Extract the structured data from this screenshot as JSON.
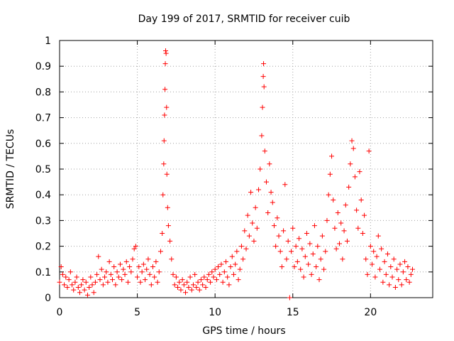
{
  "chart_data": {
    "type": "scatter",
    "title": "Day 199 of 2017, SRMTID for receiver cuib",
    "xlabel": "GPS time / hours",
    "ylabel": "SRMTID / TECUs",
    "xlim": [
      0,
      24
    ],
    "ylim": [
      0,
      1
    ],
    "xticks": [
      0,
      5,
      10,
      15,
      20
    ],
    "xtick_labels": [
      "0",
      "5",
      "10",
      "15",
      "20"
    ],
    "yticks": [
      0,
      0.1,
      0.2,
      0.3,
      0.4,
      0.5,
      0.6,
      0.7,
      0.8,
      0.9,
      1
    ],
    "ytick_labels": [
      "0",
      "0.1",
      "0.2",
      "0.3",
      "0.4",
      "0.5",
      "0.6",
      "0.7",
      "0.8",
      "0.9",
      "1"
    ],
    "grid": true,
    "marker": "+",
    "color": "#ff0000",
    "series": [
      {
        "name": "SRMTID",
        "points": [
          [
            0.0,
            0.06
          ],
          [
            0.1,
            0.12
          ],
          [
            0.2,
            0.09
          ],
          [
            0.3,
            0.05
          ],
          [
            0.4,
            0.08
          ],
          [
            0.5,
            0.04
          ],
          [
            0.6,
            0.07
          ],
          [
            0.7,
            0.1
          ],
          [
            0.8,
            0.05
          ],
          [
            0.9,
            0.03
          ],
          [
            1.0,
            0.06
          ],
          [
            1.1,
            0.08
          ],
          [
            1.2,
            0.04
          ],
          [
            1.3,
            0.02
          ],
          [
            1.4,
            0.05
          ],
          [
            1.5,
            0.07
          ],
          [
            1.6,
            0.03
          ],
          [
            1.7,
            0.06
          ],
          [
            1.8,
            0.01
          ],
          [
            1.9,
            0.04
          ],
          [
            2.0,
            0.08
          ],
          [
            2.1,
            0.05
          ],
          [
            2.2,
            0.02
          ],
          [
            2.3,
            0.06
          ],
          [
            2.4,
            0.09
          ],
          [
            2.5,
            0.16
          ],
          [
            2.6,
            0.07
          ],
          [
            2.7,
            0.11
          ],
          [
            2.8,
            0.05
          ],
          [
            2.9,
            0.08
          ],
          [
            3.0,
            0.1
          ],
          [
            3.1,
            0.06
          ],
          [
            3.2,
            0.14
          ],
          [
            3.3,
            0.09
          ],
          [
            3.4,
            0.07
          ],
          [
            3.5,
            0.12
          ],
          [
            3.6,
            0.05
          ],
          [
            3.7,
            0.1
          ],
          [
            3.8,
            0.08
          ],
          [
            3.9,
            0.13
          ],
          [
            4.0,
            0.07
          ],
          [
            4.1,
            0.11
          ],
          [
            4.2,
            0.09
          ],
          [
            4.3,
            0.14
          ],
          [
            4.4,
            0.06
          ],
          [
            4.5,
            0.12
          ],
          [
            4.6,
            0.1
          ],
          [
            4.7,
            0.15
          ],
          [
            4.8,
            0.19
          ],
          [
            4.9,
            0.2
          ],
          [
            5.0,
            0.08
          ],
          [
            5.1,
            0.12
          ],
          [
            5.2,
            0.06
          ],
          [
            5.3,
            0.1
          ],
          [
            5.4,
            0.13
          ],
          [
            5.5,
            0.07
          ],
          [
            5.6,
            0.11
          ],
          [
            5.7,
            0.15
          ],
          [
            5.8,
            0.09
          ],
          [
            5.9,
            0.05
          ],
          [
            6.0,
            0.12
          ],
          [
            6.1,
            0.08
          ],
          [
            6.2,
            0.14
          ],
          [
            6.3,
            0.06
          ],
          [
            6.4,
            0.1
          ],
          [
            6.5,
            0.18
          ],
          [
            6.6,
            0.25
          ],
          [
            6.65,
            0.4
          ],
          [
            6.7,
            0.52
          ],
          [
            6.72,
            0.61
          ],
          [
            6.75,
            0.71
          ],
          [
            6.78,
            0.81
          ],
          [
            6.8,
            0.91
          ],
          [
            6.82,
            0.96
          ],
          [
            6.85,
            0.95
          ],
          [
            6.88,
            0.74
          ],
          [
            6.9,
            0.48
          ],
          [
            6.95,
            0.35
          ],
          [
            7.0,
            0.28
          ],
          [
            7.1,
            0.22
          ],
          [
            7.2,
            0.15
          ],
          [
            7.3,
            0.09
          ],
          [
            7.4,
            0.05
          ],
          [
            7.5,
            0.08
          ],
          [
            7.6,
            0.04
          ],
          [
            7.7,
            0.06
          ],
          [
            7.8,
            0.03
          ],
          [
            7.9,
            0.07
          ],
          [
            8.0,
            0.05
          ],
          [
            8.1,
            0.02
          ],
          [
            8.2,
            0.06
          ],
          [
            8.3,
            0.04
          ],
          [
            8.4,
            0.08
          ],
          [
            8.5,
            0.03
          ],
          [
            8.6,
            0.05
          ],
          [
            8.7,
            0.09
          ],
          [
            8.8,
            0.04
          ],
          [
            8.9,
            0.06
          ],
          [
            9.0,
            0.03
          ],
          [
            9.1,
            0.07
          ],
          [
            9.2,
            0.05
          ],
          [
            9.3,
            0.08
          ],
          [
            9.4,
            0.04
          ],
          [
            9.5,
            0.07
          ],
          [
            9.6,
            0.09
          ],
          [
            9.7,
            0.06
          ],
          [
            9.8,
            0.1
          ],
          [
            9.9,
            0.08
          ],
          [
            10.0,
            0.11
          ],
          [
            10.1,
            0.07
          ],
          [
            10.2,
            0.12
          ],
          [
            10.3,
            0.09
          ],
          [
            10.4,
            0.13
          ],
          [
            10.5,
            0.06
          ],
          [
            10.6,
            0.1
          ],
          [
            10.7,
            0.14
          ],
          [
            10.8,
            0.08
          ],
          [
            10.9,
            0.05
          ],
          [
            11.0,
            0.12
          ],
          [
            11.1,
            0.16
          ],
          [
            11.2,
            0.09
          ],
          [
            11.3,
            0.13
          ],
          [
            11.4,
            0.18
          ],
          [
            11.5,
            0.07
          ],
          [
            11.6,
            0.11
          ],
          [
            11.7,
            0.2
          ],
          [
            11.8,
            0.15
          ],
          [
            11.9,
            0.26
          ],
          [
            12.0,
            0.19
          ],
          [
            12.1,
            0.32
          ],
          [
            12.2,
            0.24
          ],
          [
            12.3,
            0.41
          ],
          [
            12.4,
            0.29
          ],
          [
            12.5,
            0.22
          ],
          [
            12.6,
            0.35
          ],
          [
            12.7,
            0.27
          ],
          [
            12.8,
            0.42
          ],
          [
            12.9,
            0.5
          ],
          [
            13.0,
            0.63
          ],
          [
            13.05,
            0.74
          ],
          [
            13.1,
            0.86
          ],
          [
            13.12,
            0.91
          ],
          [
            13.15,
            0.82
          ],
          [
            13.2,
            0.57
          ],
          [
            13.3,
            0.45
          ],
          [
            13.4,
            0.33
          ],
          [
            13.5,
            0.52
          ],
          [
            13.6,
            0.41
          ],
          [
            13.7,
            0.37
          ],
          [
            13.8,
            0.28
          ],
          [
            13.9,
            0.2
          ],
          [
            14.0,
            0.31
          ],
          [
            14.1,
            0.24
          ],
          [
            14.2,
            0.18
          ],
          [
            14.3,
            0.12
          ],
          [
            14.4,
            0.26
          ],
          [
            14.5,
            0.44
          ],
          [
            14.6,
            0.15
          ],
          [
            14.7,
            0.22
          ],
          [
            14.8,
            0.0
          ],
          [
            14.9,
            0.18
          ],
          [
            15.0,
            0.27
          ],
          [
            15.1,
            0.12
          ],
          [
            15.2,
            0.2
          ],
          [
            15.3,
            0.14
          ],
          [
            15.4,
            0.23
          ],
          [
            15.5,
            0.11
          ],
          [
            15.6,
            0.19
          ],
          [
            15.7,
            0.08
          ],
          [
            15.8,
            0.16
          ],
          [
            15.9,
            0.25
          ],
          [
            16.0,
            0.13
          ],
          [
            16.1,
            0.21
          ],
          [
            16.2,
            0.09
          ],
          [
            16.3,
            0.17
          ],
          [
            16.4,
            0.28
          ],
          [
            16.5,
            0.12
          ],
          [
            16.6,
            0.2
          ],
          [
            16.7,
            0.07
          ],
          [
            16.8,
            0.15
          ],
          [
            16.9,
            0.24
          ],
          [
            17.0,
            0.11
          ],
          [
            17.1,
            0.18
          ],
          [
            17.2,
            0.3
          ],
          [
            17.3,
            0.4
          ],
          [
            17.4,
            0.48
          ],
          [
            17.5,
            0.55
          ],
          [
            17.6,
            0.38
          ],
          [
            17.7,
            0.27
          ],
          [
            17.8,
            0.19
          ],
          [
            17.9,
            0.33
          ],
          [
            18.0,
            0.21
          ],
          [
            18.1,
            0.29
          ],
          [
            18.2,
            0.15
          ],
          [
            18.3,
            0.26
          ],
          [
            18.4,
            0.36
          ],
          [
            18.5,
            0.22
          ],
          [
            18.6,
            0.43
          ],
          [
            18.7,
            0.52
          ],
          [
            18.8,
            0.61
          ],
          [
            18.9,
            0.58
          ],
          [
            19.0,
            0.47
          ],
          [
            19.1,
            0.34
          ],
          [
            19.2,
            0.27
          ],
          [
            19.3,
            0.49
          ],
          [
            19.4,
            0.38
          ],
          [
            19.5,
            0.25
          ],
          [
            19.6,
            0.32
          ],
          [
            19.7,
            0.15
          ],
          [
            19.8,
            0.09
          ],
          [
            19.9,
            0.57
          ],
          [
            20.0,
            0.2
          ],
          [
            20.1,
            0.13
          ],
          [
            20.2,
            0.18
          ],
          [
            20.3,
            0.08
          ],
          [
            20.4,
            0.16
          ],
          [
            20.5,
            0.24
          ],
          [
            20.6,
            0.11
          ],
          [
            20.7,
            0.19
          ],
          [
            20.8,
            0.06
          ],
          [
            20.9,
            0.14
          ],
          [
            21.0,
            0.09
          ],
          [
            21.1,
            0.17
          ],
          [
            21.2,
            0.05
          ],
          [
            21.3,
            0.12
          ],
          [
            21.4,
            0.08
          ],
          [
            21.5,
            0.15
          ],
          [
            21.6,
            0.04
          ],
          [
            21.7,
            0.11
          ],
          [
            21.8,
            0.07
          ],
          [
            21.9,
            0.13
          ],
          [
            22.0,
            0.05
          ],
          [
            22.1,
            0.1
          ],
          [
            22.2,
            0.14
          ],
          [
            22.3,
            0.07
          ],
          [
            22.4,
            0.12
          ],
          [
            22.5,
            0.06
          ],
          [
            22.6,
            0.09
          ],
          [
            22.7,
            0.11
          ]
        ]
      }
    ]
  }
}
